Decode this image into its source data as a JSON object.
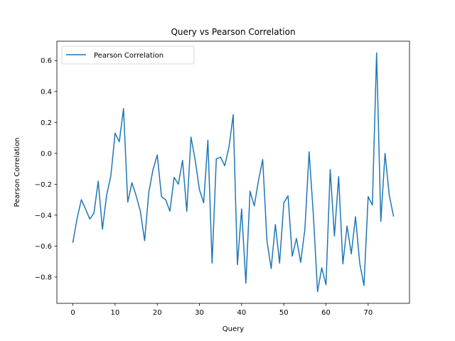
{
  "chart_data": {
    "type": "line",
    "title": "Query vs Pearson Correlation",
    "xlabel": "Query",
    "ylabel": "Pearson Correlation",
    "xlim": [
      -3.8,
      79.8
    ],
    "ylim": [
      -0.97,
      0.725
    ],
    "xticks": [
      0,
      10,
      20,
      30,
      40,
      50,
      60,
      70
    ],
    "yticks": [
      -0.8,
      -0.6,
      -0.4,
      -0.2,
      0.0,
      0.2,
      0.4,
      0.6
    ],
    "ytick_labels": [
      "−0.8",
      "−0.6",
      "−0.4",
      "−0.2",
      "0.0",
      "0.2",
      "0.4",
      "0.6"
    ],
    "grid": false,
    "legend_position": "top-left",
    "series": [
      {
        "name": "Pearson Correlation",
        "color": "#1f77b4",
        "x": [
          0,
          1,
          2,
          3,
          4,
          5,
          6,
          7,
          8,
          9,
          10,
          11,
          12,
          13,
          14,
          15,
          16,
          17,
          18,
          19,
          20,
          21,
          22,
          23,
          24,
          25,
          26,
          27,
          28,
          29,
          30,
          31,
          32,
          33,
          34,
          35,
          36,
          37,
          38,
          39,
          40,
          41,
          42,
          43,
          44,
          45,
          46,
          47,
          48,
          49,
          50,
          51,
          52,
          53,
          54,
          55,
          56,
          57,
          58,
          59,
          60,
          61,
          62,
          63,
          64,
          65,
          66,
          67,
          68,
          69,
          70,
          71,
          72,
          73,
          74,
          75,
          76
        ],
        "y": [
          -0.575,
          -0.42,
          -0.3,
          -0.36,
          -0.425,
          -0.385,
          -0.18,
          -0.49,
          -0.27,
          -0.145,
          0.13,
          0.075,
          0.29,
          -0.315,
          -0.19,
          -0.275,
          -0.375,
          -0.565,
          -0.25,
          -0.105,
          -0.01,
          -0.28,
          -0.3,
          -0.375,
          -0.155,
          -0.2,
          -0.045,
          -0.375,
          0.105,
          -0.045,
          -0.235,
          -0.32,
          0.085,
          -0.71,
          -0.035,
          -0.025,
          -0.08,
          0.04,
          0.25,
          -0.72,
          -0.36,
          -0.84,
          -0.245,
          -0.34,
          -0.175,
          -0.04,
          -0.565,
          -0.745,
          -0.46,
          -0.71,
          -0.32,
          -0.275,
          -0.665,
          -0.55,
          -0.705,
          -0.49,
          0.01,
          -0.395,
          -0.895,
          -0.74,
          -0.85,
          -0.105,
          -0.535,
          -0.15,
          -0.715,
          -0.47,
          -0.65,
          -0.41,
          -0.71,
          -0.855,
          -0.28,
          -0.335,
          0.65,
          -0.44,
          0.0,
          -0.27,
          -0.405
        ]
      }
    ]
  }
}
